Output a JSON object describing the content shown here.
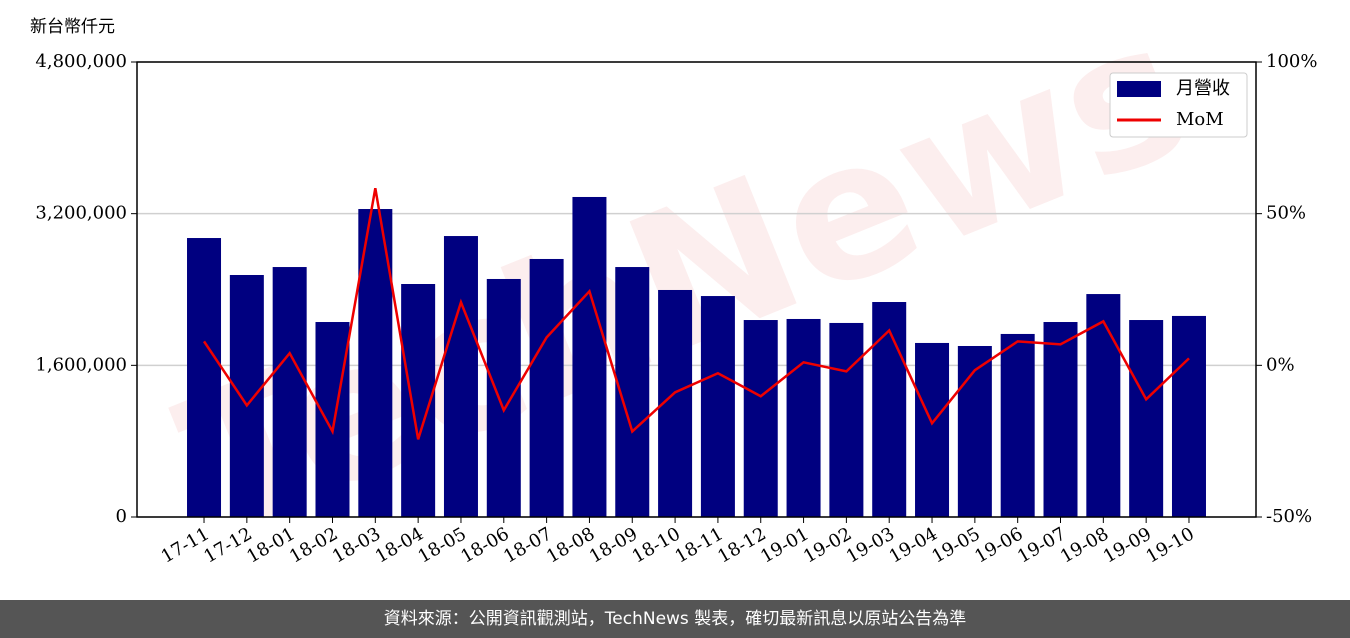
{
  "chart_data": {
    "type": "bar-line",
    "ylabel": "新台幣仟元",
    "watermark": "TechNews",
    "categories": [
      "17-11",
      "17-12",
      "18-01",
      "18-02",
      "18-03",
      "18-04",
      "18-05",
      "18-06",
      "18-07",
      "18-08",
      "18-09",
      "18-10",
      "18-11",
      "18-12",
      "19-01",
      "19-02",
      "19-03",
      "19-04",
      "19-05",
      "19-06",
      "19-07",
      "19-08",
      "19-09",
      "19-10"
    ],
    "series": [
      {
        "name": "月營收",
        "type": "bar",
        "color": "#000080",
        "values": [
          2943000,
          2553000,
          2637000,
          2057000,
          3249000,
          2458000,
          2964000,
          2511000,
          2722000,
          3376000,
          2637000,
          2395000,
          2331000,
          2078000,
          2089000,
          2047000,
          2268000,
          1836000,
          1804000,
          1931000,
          2057000,
          2352000,
          2078000,
          2121000
        ]
      },
      {
        "name": "MoM",
        "type": "line",
        "axis": "y2",
        "color": "#ee0000",
        "values": [
          7.9,
          -13.2,
          4.0,
          -21.8,
          58.4,
          -24.4,
          20.8,
          -14.8,
          9.2,
          24.4,
          -21.8,
          -8.9,
          -2.6,
          -10.2,
          1.0,
          -2.0,
          11.5,
          -19.1,
          -1.6,
          7.9,
          6.9,
          14.5,
          -11.2,
          2.3
        ]
      }
    ],
    "ylim": [
      0,
      4800000
    ],
    "yticks": [
      {
        "value": 0,
        "label": "0"
      },
      {
        "value": 1600000,
        "label": "1,600,000"
      },
      {
        "value": 3200000,
        "label": "3,200,000"
      },
      {
        "value": 4800000,
        "label": "4,800,000"
      }
    ],
    "y2lim": [
      -50,
      100
    ],
    "y2ticks": [
      {
        "value": -50,
        "label": "-50%"
      },
      {
        "value": 0,
        "label": "0%"
      },
      {
        "value": 50,
        "label": "50%"
      },
      {
        "value": 100,
        "label": "100%"
      }
    ],
    "grid": true,
    "legend": "upper right"
  },
  "footer": "資料來源：公開資訊觀測站，TechNews 製表，確切最新訊息以原站公告為準"
}
